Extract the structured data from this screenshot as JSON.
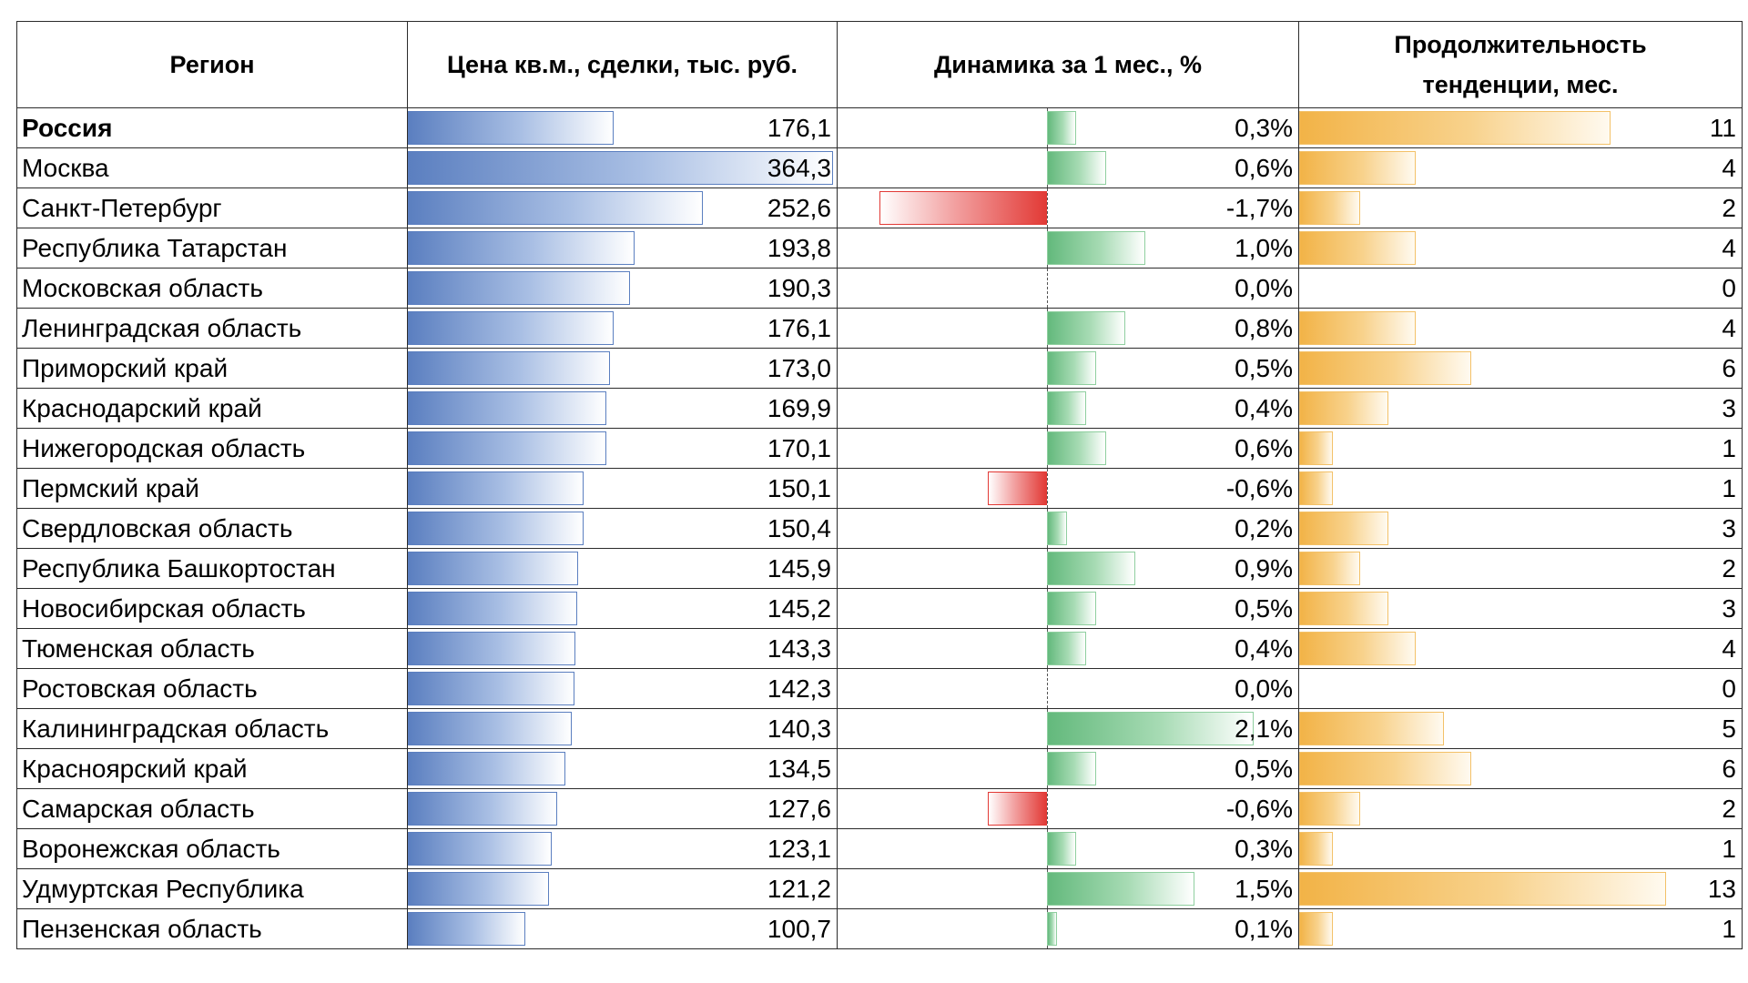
{
  "chart_data": {
    "type": "table",
    "headers": {
      "region": "Регион",
      "price": "Цена кв.м., сделки, тыс. руб.",
      "dynamics": "Динамика за 1 мес., %",
      "duration": "Продолжительность тенденции, мес."
    },
    "colors": {
      "price_bar": "#5b7fc0",
      "positive_bar": "#63b97c",
      "negative_bar": "#e23a36",
      "duration_bar": "#f2b347"
    },
    "rows": [
      {
        "region": "Россия",
        "price": 176.1,
        "price_label": "176,1",
        "dynamics": 0.3,
        "dynamics_label": "0,3%",
        "duration": 11,
        "duration_label": "11",
        "bold": true
      },
      {
        "region": "Москва",
        "price": 364.3,
        "price_label": "364,3",
        "dynamics": 0.6,
        "dynamics_label": "0,6%",
        "duration": 4,
        "duration_label": "4"
      },
      {
        "region": "Санкт-Петербург",
        "price": 252.6,
        "price_label": "252,6",
        "dynamics": -1.7,
        "dynamics_label": "-1,7%",
        "duration": 2,
        "duration_label": "2"
      },
      {
        "region": "Республика Татарстан",
        "price": 193.8,
        "price_label": "193,8",
        "dynamics": 1.0,
        "dynamics_label": "1,0%",
        "duration": 4,
        "duration_label": "4"
      },
      {
        "region": "Московская область",
        "price": 190.3,
        "price_label": "190,3",
        "dynamics": 0.0,
        "dynamics_label": "0,0%",
        "duration": 0,
        "duration_label": "0"
      },
      {
        "region": "Ленинградская область",
        "price": 176.1,
        "price_label": "176,1",
        "dynamics": 0.8,
        "dynamics_label": "0,8%",
        "duration": 4,
        "duration_label": "4"
      },
      {
        "region": "Приморский край",
        "price": 173.0,
        "price_label": "173,0",
        "dynamics": 0.5,
        "dynamics_label": "0,5%",
        "duration": 6,
        "duration_label": "6"
      },
      {
        "region": "Краснодарский край",
        "price": 169.9,
        "price_label": "169,9",
        "dynamics": 0.4,
        "dynamics_label": "0,4%",
        "duration": 3,
        "duration_label": "3"
      },
      {
        "region": "Нижегородская область",
        "price": 170.1,
        "price_label": "170,1",
        "dynamics": 0.6,
        "dynamics_label": "0,6%",
        "duration": 1,
        "duration_label": "1"
      },
      {
        "region": "Пермский край",
        "price": 150.1,
        "price_label": "150,1",
        "dynamics": -0.6,
        "dynamics_label": "-0,6%",
        "duration": 1,
        "duration_label": "1"
      },
      {
        "region": "Свердловская область",
        "price": 150.4,
        "price_label": "150,4",
        "dynamics": 0.2,
        "dynamics_label": "0,2%",
        "duration": 3,
        "duration_label": "3"
      },
      {
        "region": "Республика Башкортостан",
        "price": 145.9,
        "price_label": "145,9",
        "dynamics": 0.9,
        "dynamics_label": "0,9%",
        "duration": 2,
        "duration_label": "2"
      },
      {
        "region": "Новосибирская область",
        "price": 145.2,
        "price_label": "145,2",
        "dynamics": 0.5,
        "dynamics_label": "0,5%",
        "duration": 3,
        "duration_label": "3"
      },
      {
        "region": "Тюменская область",
        "price": 143.3,
        "price_label": "143,3",
        "dynamics": 0.4,
        "dynamics_label": "0,4%",
        "duration": 4,
        "duration_label": "4"
      },
      {
        "region": "Ростовская область",
        "price": 142.3,
        "price_label": "142,3",
        "dynamics": 0.0,
        "dynamics_label": "0,0%",
        "duration": 0,
        "duration_label": "0"
      },
      {
        "region": "Калининградская область",
        "price": 140.3,
        "price_label": "140,3",
        "dynamics": 2.1,
        "dynamics_label": "2,1%",
        "duration": 5,
        "duration_label": "5"
      },
      {
        "region": "Красноярский край",
        "price": 134.5,
        "price_label": "134,5",
        "dynamics": 0.5,
        "dynamics_label": "0,5%",
        "duration": 6,
        "duration_label": "6"
      },
      {
        "region": "Самарская область",
        "price": 127.6,
        "price_label": "127,6",
        "dynamics": -0.6,
        "dynamics_label": "-0,6%",
        "duration": 2,
        "duration_label": "2"
      },
      {
        "region": "Воронежская область",
        "price": 123.1,
        "price_label": "123,1",
        "dynamics": 0.3,
        "dynamics_label": "0,3%",
        "duration": 1,
        "duration_label": "1"
      },
      {
        "region": "Удмуртская Республика",
        "price": 121.2,
        "price_label": "121,2",
        "dynamics": 1.5,
        "dynamics_label": "1,5%",
        "duration": 13,
        "duration_label": "13"
      },
      {
        "region": "Пензенская область",
        "price": 100.7,
        "price_label": "100,7",
        "dynamics": 0.1,
        "dynamics_label": "0,1%",
        "duration": 1,
        "duration_label": "1"
      }
    ]
  }
}
